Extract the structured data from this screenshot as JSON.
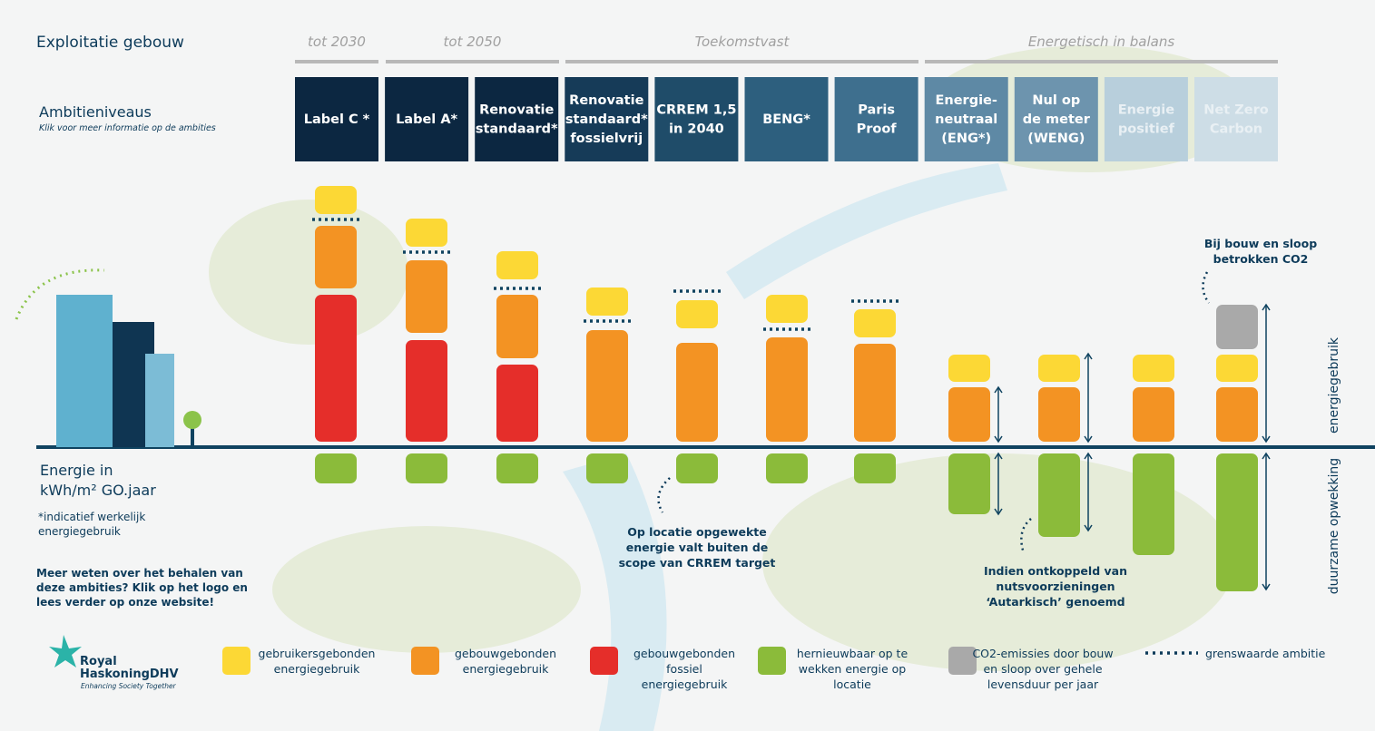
{
  "header": {
    "title": "Exploitatie gebouw"
  },
  "groups": [
    "tot 2030",
    "tot 2050",
    "Toekomstvast",
    "Energetisch in balans"
  ],
  "ambitions": {
    "title": "Ambitieniveaus",
    "subtitle": "Klik voor meer informatie op de ambities",
    "tiles": [
      [
        "Label C *"
      ],
      [
        "Label A*"
      ],
      [
        "Renovatie",
        "standaard*"
      ],
      [
        "Renovatie",
        "standaard*",
        "fossielvrij"
      ],
      [
        "CRREM 1,5",
        "in 2040"
      ],
      [
        "BENG*"
      ],
      [
        "Paris",
        "Proof"
      ],
      [
        "Energie-",
        "neutraal",
        "(ENG*)"
      ],
      [
        "Nul op",
        "de meter",
        "(WENG)"
      ],
      [
        "Energie",
        "positief"
      ],
      [
        "Net Zero",
        "Carbon"
      ]
    ]
  },
  "unit": [
    "Energie in",
    "kWh/m² GO.jaar"
  ],
  "note": [
    "*indicatief werkelijk",
    "energiegebruik"
  ],
  "more_info": [
    "Meer weten over het behalen van",
    "deze ambities? Klik op het logo en",
    "lees verder op onze website!"
  ],
  "side_labels": [
    "energiegebruik",
    "duurzame opwekking"
  ],
  "annotations": [
    [
      "Op locatie opgewekte",
      "energie valt buiten de",
      "scope van CRREM target"
    ],
    [
      "Indien ontkoppeld  van",
      "nutsvoorzieningen",
      "‘Autarkisch’ genoemd"
    ],
    [
      "Bij bouw en sloop",
      "betrokken CO2"
    ]
  ],
  "legend": [
    [
      "gebruikersgebonden",
      "energiegebruik"
    ],
    [
      "gebouwgebonden",
      "energiegebruik"
    ],
    [
      "gebouwgebonden",
      "fossiel",
      "energiegebruik"
    ],
    [
      "hernieuwbaar op te",
      "wekken energie op",
      "locatie"
    ],
    [
      "CO2-emissies door bouw",
      "en sloop over gehele",
      "levensduur per jaar"
    ],
    [
      "grenswaarde ambitie"
    ]
  ],
  "logo": {
    "name": [
      "Royal",
      "HaskoningDHV"
    ],
    "tagline": "Enhancing Society Together"
  }
}
